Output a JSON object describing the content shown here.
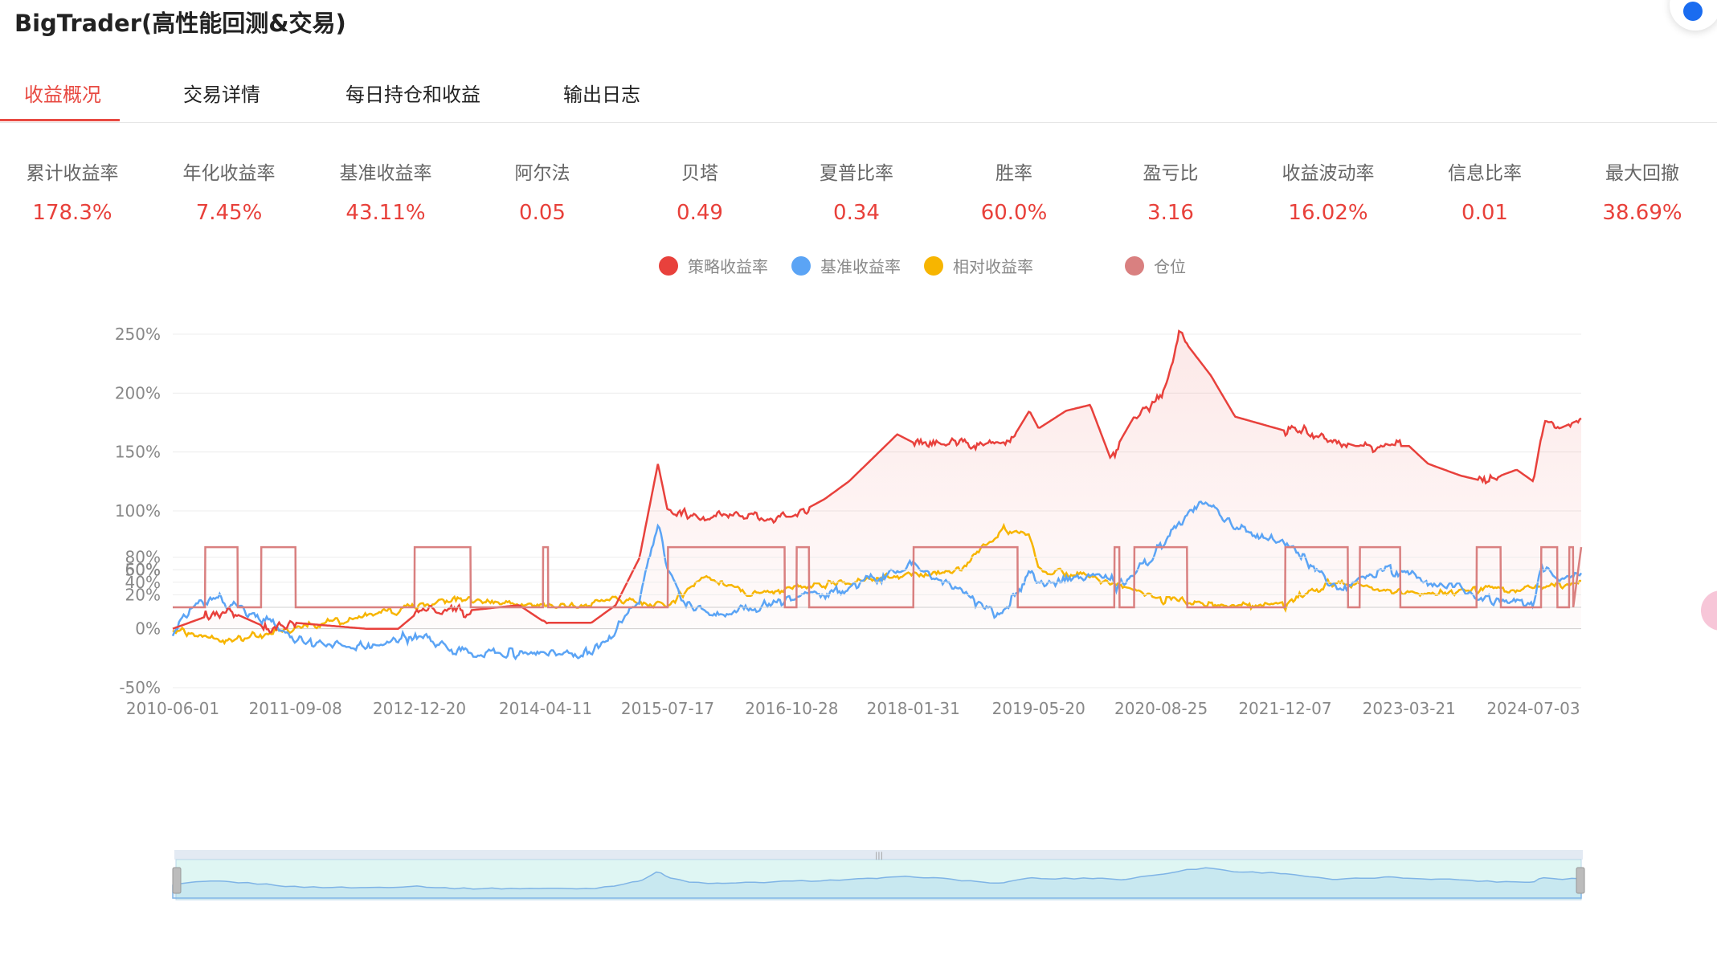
{
  "app": {
    "title": "BigTrader(高性能回测&交易)"
  },
  "tabs": [
    {
      "label": "收益概况",
      "active": true
    },
    {
      "label": "交易详情",
      "active": false
    },
    {
      "label": "每日持仓和收益",
      "active": false
    },
    {
      "label": "输出日志",
      "active": false
    }
  ],
  "metrics": [
    {
      "label": "累计收益率",
      "value": "178.3%"
    },
    {
      "label": "年化收益率",
      "value": "7.45%"
    },
    {
      "label": "基准收益率",
      "value": "43.11%"
    },
    {
      "label": "阿尔法",
      "value": "0.05"
    },
    {
      "label": "贝塔",
      "value": "0.49"
    },
    {
      "label": "夏普比率",
      "value": "0.34"
    },
    {
      "label": "胜率",
      "value": "60.0%"
    },
    {
      "label": "盈亏比",
      "value": "3.16"
    },
    {
      "label": "收益波动率",
      "value": "16.02%"
    },
    {
      "label": "信息比率",
      "value": "0.01"
    },
    {
      "label": "最大回撤",
      "value": "38.69%"
    }
  ],
  "legend": [
    {
      "label": "策略收益率",
      "color": "#e8413c"
    },
    {
      "label": "基准收益率",
      "color": "#5ba4f5"
    },
    {
      "label": "相对收益率",
      "color": "#f7b500"
    },
    {
      "label": "仓位",
      "color": "#d98080"
    }
  ],
  "colors": {
    "accent": "#e84a42",
    "strategy": "#e8413c",
    "benchmark": "#5ba4f5",
    "relative": "#f7b500",
    "position": "#d98080"
  },
  "chart_data": [
    {
      "type": "line",
      "series": [
        {
          "name": "策略收益率",
          "x": [
            "2010-06-01",
            "2010-10-01",
            "2011-01-01",
            "2011-06-01",
            "2011-09-08",
            "2012-06-01",
            "2012-10-01",
            "2012-12-20",
            "2013-06-01",
            "2014-01-01",
            "2014-04-11",
            "2014-10-01",
            "2015-01-01",
            "2015-04-01",
            "2015-06-10",
            "2015-07-17",
            "2015-12-01",
            "2016-06-01",
            "2016-10-28",
            "2017-03-01",
            "2017-06-01",
            "2017-09-01",
            "2017-12-01",
            "2018-01-31",
            "2018-08-01",
            "2019-02-01",
            "2019-04-15",
            "2019-05-20",
            "2019-09-01",
            "2019-12-01",
            "2020-02-15",
            "2020-05-15",
            "2020-08-25",
            "2020-11-01",
            "2021-03-01",
            "2021-06-01",
            "2021-12-07",
            "2022-03-01",
            "2022-09-01",
            "2023-03-21",
            "2023-06-01",
            "2023-10-01",
            "2024-01-01",
            "2024-05-01",
            "2024-07-03",
            "2024-08-15",
            "2024-10-10",
            "2024-12-31"
          ],
          "y": [
            0,
            10,
            15,
            0,
            5,
            0,
            0,
            15,
            15,
            20,
            5,
            5,
            20,
            60,
            140,
            100,
            95,
            95,
            95,
            110,
            125,
            145,
            165,
            158,
            158,
            158,
            185,
            170,
            185,
            190,
            145,
            180,
            195,
            250,
            215,
            180,
            168,
            168,
            155,
            155,
            140,
            130,
            125,
            135,
            125,
            180,
            170,
            178
          ]
        },
        {
          "name": "基准收益率",
          "x": [
            "2010-06-01",
            "2010-09-01",
            "2010-12-01",
            "2011-06-01",
            "2011-09-08",
            "2012-06-01",
            "2012-12-20",
            "2013-03-01",
            "2013-06-01",
            "2014-04-11",
            "2014-10-01",
            "2015-01-01",
            "2015-04-01",
            "2015-06-10",
            "2015-07-17",
            "2015-10-01",
            "2016-02-01",
            "2016-10-28",
            "2017-06-01",
            "2018-01-31",
            "2018-06-01",
            "2019-01-01",
            "2019-04-15",
            "2019-05-20",
            "2020-01-01",
            "2020-04-01",
            "2020-08-25",
            "2020-11-01",
            "2021-02-15",
            "2021-06-01",
            "2021-12-07",
            "2022-06-01",
            "2023-01-01",
            "2023-03-21",
            "2023-10-01",
            "2024-01-01",
            "2024-07-03",
            "2024-08-01",
            "2024-10-10",
            "2024-12-31"
          ],
          "y": [
            0,
            20,
            25,
            5,
            -10,
            -15,
            -5,
            -15,
            -20,
            -20,
            -20,
            0,
            25,
            90,
            50,
            20,
            10,
            25,
            35,
            55,
            40,
            10,
            50,
            40,
            45,
            35,
            70,
            90,
            110,
            85,
            75,
            35,
            50,
            45,
            35,
            25,
            20,
            50,
            40,
            43.11
          ]
        },
        {
          "name": "相对收益率",
          "x": [
            "2010-06-01",
            "2010-12-01",
            "2011-09-08",
            "2012-06-01",
            "2012-12-20",
            "2013-06-01",
            "2014-04-11",
            "2014-10-01",
            "2015-01-01",
            "2015-07-17",
            "2015-12-01",
            "2016-06-01",
            "2016-10-28",
            "2017-06-01",
            "2018-01-31",
            "2018-08-01",
            "2019-01-01",
            "2019-04-15",
            "2019-05-20",
            "2019-12-01",
            "2020-08-25",
            "2021-06-01",
            "2021-12-07",
            "2022-06-01",
            "2023-03-21",
            "2024-07-03",
            "2024-12-31"
          ],
          "y": [
            0,
            -10,
            0,
            10,
            20,
            25,
            20,
            20,
            25,
            20,
            45,
            30,
            35,
            40,
            45,
            50,
            85,
            80,
            50,
            45,
            25,
            20,
            20,
            40,
            30,
            35,
            38
          ]
        }
      ],
      "xticks": [
        "2010-06-01",
        "2011-09-08",
        "2012-12-20",
        "2014-04-11",
        "2015-07-17",
        "2016-10-28",
        "2018-01-31",
        "2019-05-20",
        "2020-08-25",
        "2021-12-07",
        "2023-03-21",
        "2024-07-03"
      ],
      "yticks": [
        "250%",
        "200%",
        "150%",
        "100%",
        "50%",
        "0%",
        "-50%"
      ],
      "ylim": [
        -50,
        250
      ],
      "grid": true
    },
    {
      "type": "line",
      "series": [
        {
          "name": "仓位",
          "x": [
            "2010-06-01",
            "2010-10-01",
            "2010-10-02",
            "2011-02-01",
            "2011-02-02",
            "2011-05-01",
            "2011-05-02",
            "2011-09-08",
            "2011-09-09",
            "2012-12-01",
            "2012-12-02",
            "2013-07-01",
            "2013-07-02",
            "2014-04-01",
            "2014-04-02",
            "2014-04-20",
            "2014-04-21",
            "2015-07-17",
            "2015-07-18",
            "2016-10-01",
            "2016-10-02",
            "2016-11-15",
            "2016-11-16",
            "2017-01-01",
            "2017-01-02",
            "2018-01-31",
            "2018-02-01",
            "2019-03-01",
            "2019-03-02",
            "2020-03-01",
            "2020-03-02",
            "2020-03-20",
            "2020-03-21",
            "2020-05-15",
            "2020-05-16",
            "2020-12-01",
            "2020-12-02",
            "2021-12-07",
            "2021-12-08",
            "2022-08-01",
            "2022-08-02",
            "2022-09-15",
            "2022-09-16",
            "2023-02-15",
            "2023-02-16",
            "2023-12-01",
            "2023-12-02",
            "2024-03-01",
            "2024-03-02",
            "2024-08-01",
            "2024-08-02",
            "2024-10-01",
            "2024-10-02",
            "2024-11-15",
            "2024-11-16",
            "2024-11-30",
            "2024-12-01",
            "2024-12-31"
          ],
          "y": [
            0,
            0,
            100,
            100,
            0,
            0,
            100,
            100,
            0,
            0,
            100,
            100,
            0,
            0,
            100,
            100,
            0,
            0,
            100,
            100,
            0,
            0,
            100,
            100,
            0,
            0,
            100,
            100,
            0,
            0,
            100,
            100,
            0,
            0,
            100,
            100,
            0,
            0,
            100,
            100,
            0,
            0,
            100,
            100,
            0,
            0,
            100,
            100,
            0,
            0,
            100,
            100,
            0,
            0,
            100,
            100,
            0,
            100
          ]
        }
      ],
      "yticks": [
        "80%",
        "60%",
        "40%",
        "20%"
      ],
      "ylim": [
        0,
        100
      ]
    }
  ]
}
